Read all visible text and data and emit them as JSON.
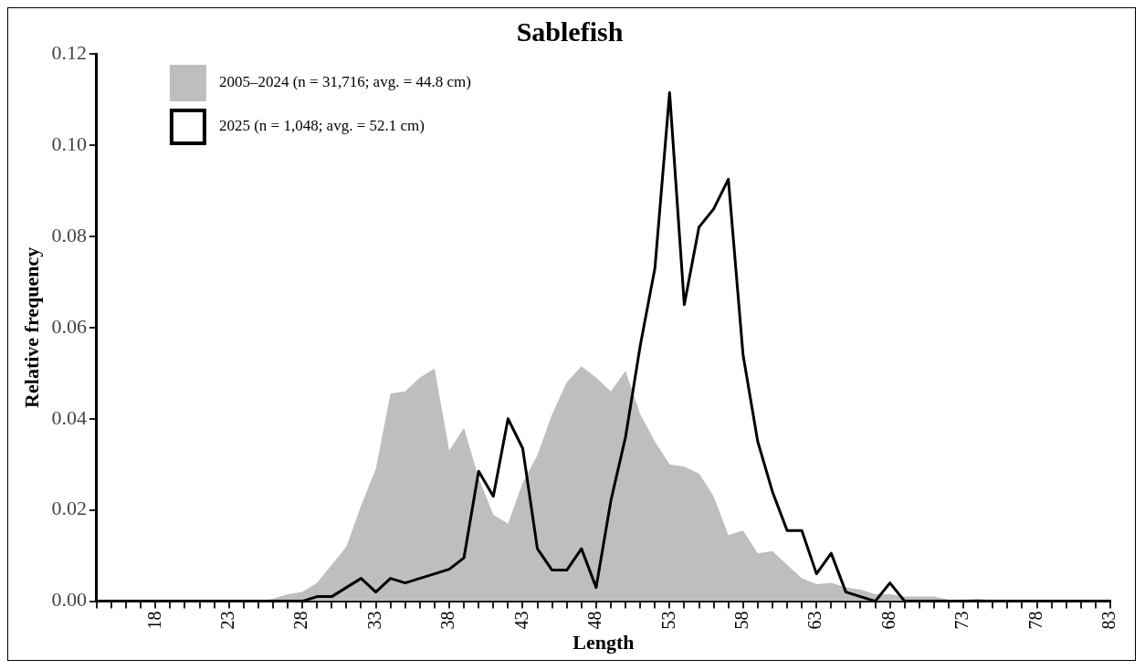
{
  "chart_data": {
    "type": "line",
    "title": "Sablefish",
    "xlabel": "Length",
    "ylabel": "Relative frequency",
    "x": [
      14,
      15,
      16,
      17,
      18,
      19,
      20,
      21,
      22,
      23,
      24,
      25,
      26,
      27,
      28,
      29,
      30,
      31,
      32,
      33,
      34,
      35,
      36,
      37,
      38,
      39,
      40,
      41,
      42,
      43,
      44,
      45,
      46,
      47,
      48,
      49,
      50,
      51,
      52,
      53,
      54,
      55,
      56,
      57,
      58,
      59,
      60,
      61,
      62,
      63,
      64,
      65,
      66,
      67,
      68,
      69,
      70,
      71,
      72,
      73,
      74,
      75,
      76,
      77,
      78,
      79,
      80,
      81,
      82,
      83
    ],
    "series": [
      {
        "name": "2005–2024 (n = 31,716; avg. = 44.8 cm)",
        "type": "area",
        "color": "#bebebe",
        "values": [
          0,
          0,
          0,
          0,
          0,
          0,
          0,
          0,
          0,
          0,
          0,
          0,
          0.0005,
          0.0015,
          0.002,
          0.004,
          0.008,
          0.012,
          0.021,
          0.029,
          0.0455,
          0.046,
          0.049,
          0.051,
          0.033,
          0.038,
          0.027,
          0.019,
          0.017,
          0.026,
          0.032,
          0.041,
          0.048,
          0.0515,
          0.049,
          0.046,
          0.0505,
          0.041,
          0.035,
          0.03,
          0.0295,
          0.028,
          0.023,
          0.0145,
          0.0155,
          0.0105,
          0.011,
          0.008,
          0.005,
          0.0037,
          0.004,
          0.003,
          0.0025,
          0.0015,
          0.0015,
          0.001,
          0.001,
          0.001,
          0.0003,
          0.0003,
          0.0005,
          0.0002,
          0,
          0,
          0,
          0,
          0,
          0,
          0,
          0
        ]
      },
      {
        "name": "2025 (n = 1,048; avg. = 52.1 cm)",
        "type": "line",
        "color": "#000000",
        "values": [
          0,
          0,
          0,
          0,
          0,
          0,
          0,
          0,
          0,
          0,
          0,
          0,
          0,
          0,
          0,
          0.001,
          0.001,
          0.003,
          0.005,
          0.002,
          0.005,
          0.004,
          0.005,
          0.006,
          0.007,
          0.0095,
          0.0285,
          0.023,
          0.04,
          0.0335,
          0.0115,
          0.0068,
          0.0068,
          0.0115,
          0.003,
          0.022,
          0.036,
          0.056,
          0.073,
          0.1115,
          0.065,
          0.082,
          0.086,
          0.0925,
          0.054,
          0.035,
          0.024,
          0.0155,
          0.0155,
          0.006,
          0.0105,
          0.002,
          0.001,
          0,
          0.004,
          0,
          0,
          0,
          0,
          0,
          0,
          0,
          0,
          0,
          0,
          0,
          0,
          0,
          0,
          0
        ]
      }
    ],
    "xlim": [
      14,
      83
    ],
    "xticks": [
      {
        "value": 14,
        "label": null
      },
      {
        "value": 15,
        "label": null
      },
      {
        "value": 16,
        "label": null
      },
      {
        "value": 17,
        "label": null
      },
      18,
      {
        "value": 19,
        "label": null
      },
      {
        "value": 20,
        "label": null
      },
      {
        "value": 21,
        "label": null
      },
      {
        "value": 22,
        "label": null
      },
      23,
      {
        "value": 24,
        "label": null
      },
      {
        "value": 25,
        "label": null
      },
      {
        "value": 26,
        "label": null
      },
      {
        "value": 27,
        "label": null
      },
      28,
      {
        "value": 29,
        "label": null
      },
      {
        "value": 30,
        "label": null
      },
      {
        "value": 31,
        "label": null
      },
      {
        "value": 32,
        "label": null
      },
      33,
      {
        "value": 34,
        "label": null
      },
      {
        "value": 35,
        "label": null
      },
      {
        "value": 36,
        "label": null
      },
      {
        "value": 37,
        "label": null
      },
      38,
      {
        "value": 39,
        "label": null
      },
      {
        "value": 40,
        "label": null
      },
      {
        "value": 41,
        "label": null
      },
      {
        "value": 42,
        "label": null
      },
      43,
      {
        "value": 44,
        "label": null
      },
      {
        "value": 45,
        "label": null
      },
      {
        "value": 46,
        "label": null
      },
      {
        "value": 47,
        "label": null
      },
      48,
      {
        "value": 49,
        "label": null
      },
      {
        "value": 50,
        "label": null
      },
      {
        "value": 51,
        "label": null
      },
      {
        "value": 52,
        "label": null
      },
      53,
      {
        "value": 54,
        "label": null
      },
      {
        "value": 55,
        "label": null
      },
      {
        "value": 56,
        "label": null
      },
      {
        "value": 57,
        "label": null
      },
      58,
      {
        "value": 59,
        "label": null
      },
      {
        "value": 60,
        "label": null
      },
      {
        "value": 61,
        "label": null
      },
      {
        "value": 62,
        "label": null
      },
      63,
      {
        "value": 64,
        "label": null
      },
      {
        "value": 65,
        "label": null
      },
      {
        "value": 66,
        "label": null
      },
      {
        "value": 67,
        "label": null
      },
      68,
      {
        "value": 69,
        "label": null
      },
      {
        "value": 70,
        "label": null
      },
      {
        "value": 71,
        "label": null
      },
      {
        "value": 72,
        "label": null
      },
      73,
      {
        "value": 74,
        "label": null
      },
      {
        "value": 75,
        "label": null
      },
      {
        "value": 76,
        "label": null
      },
      {
        "value": 77,
        "label": null
      },
      78,
      {
        "value": 79,
        "label": null
      },
      {
        "value": 80,
        "label": null
      },
      {
        "value": 81,
        "label": null
      },
      {
        "value": 82,
        "label": null
      },
      83
    ],
    "ylim": [
      0,
      0.12
    ],
    "yticks": [
      {
        "value": 0,
        "label": "0.00"
      },
      {
        "value": 0.02,
        "label": "0.02"
      },
      {
        "value": 0.04,
        "label": "0.04"
      },
      {
        "value": 0.06,
        "label": "0.06"
      },
      {
        "value": 0.08,
        "label": "0.08"
      },
      {
        "value": 0.1,
        "label": "0.10"
      },
      {
        "value": 0.12,
        "label": "0.12"
      }
    ],
    "grid": false,
    "legend": "top left",
    "marker": "none",
    "line_style": "solid"
  }
}
